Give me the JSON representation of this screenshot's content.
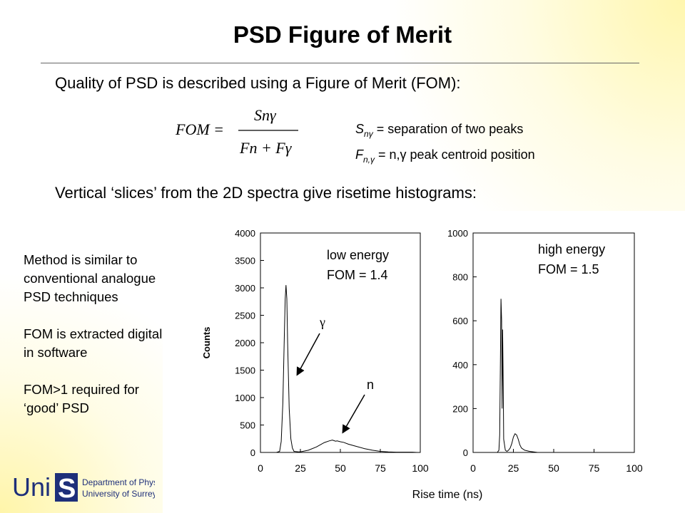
{
  "slide": {
    "title": "PSD Figure of Merit",
    "intro": "Quality of PSD is described using a Figure of Merit (FOM):",
    "slices": "Vertical ‘slices’ from the 2D spectra give risetime histograms:"
  },
  "formula": {
    "lhs": "FOM =",
    "num": "Snγ",
    "den": "Fn + Fγ"
  },
  "definitions": [
    {
      "sym": "S",
      "sub": "nγ",
      "text": " = separation of two peaks"
    },
    {
      "sym": "F",
      "sub": "n,γ",
      "text": " = n,γ peak centroid position"
    }
  ],
  "side_notes": [
    "Method is similar to conventional analogue PSD techniques",
    "FOM is extracted digitally in software",
    "FOM>1 required for ‘good’ PSD"
  ],
  "logo": {
    "mark_a": "Uni",
    "mark_b": "S",
    "line1": "Department of Physics",
    "line2": "University of Surrey"
  },
  "chart_data": [
    {
      "type": "line",
      "title": "",
      "xlabel": "Rise time (ns)",
      "ylabel": "Counts",
      "xlim": [
        0,
        100
      ],
      "ylim": [
        0,
        4000
      ],
      "xticks": [
        0,
        25,
        50,
        75,
        100
      ],
      "yticks": [
        0,
        500,
        1000,
        1500,
        2000,
        2500,
        3000,
        3500,
        4000
      ],
      "annotations": [
        "low energy",
        "FOM = 1.4",
        "γ",
        "n"
      ],
      "series": [
        {
          "x": [
            0,
            5,
            10,
            12,
            13,
            14,
            15,
            15.5,
            16,
            16.5,
            17,
            18,
            19,
            20,
            21,
            22,
            24,
            26,
            30,
            35,
            40,
            43,
            45,
            47,
            48,
            50,
            52,
            55,
            60,
            65,
            70,
            75,
            80,
            85,
            90,
            95,
            98
          ],
          "y": [
            0,
            0,
            0,
            20,
            200,
            900,
            2200,
            2800,
            3050,
            2800,
            2000,
            800,
            250,
            80,
            20,
            15,
            10,
            15,
            40,
            100,
            180,
            210,
            225,
            205,
            210,
            195,
            185,
            150,
            110,
            70,
            40,
            20,
            10,
            5,
            5,
            5,
            0
          ]
        }
      ]
    },
    {
      "type": "line",
      "title": "",
      "xlabel": "Rise time (ns)",
      "ylabel": "",
      "xlim": [
        0,
        100
      ],
      "ylim": [
        0,
        1000
      ],
      "xticks": [
        0,
        25,
        50,
        75,
        100
      ],
      "yticks": [
        0,
        200,
        400,
        600,
        800,
        1000
      ],
      "annotations": [
        "high energy",
        "FOM = 1.5"
      ],
      "series": [
        {
          "x": [
            0,
            10,
            15,
            16,
            16.5,
            17,
            17.3,
            17.7,
            18,
            18.3,
            18.7,
            19,
            20,
            21,
            22,
            23,
            24,
            25,
            26,
            27,
            28,
            29,
            30,
            32,
            35,
            38,
            40,
            45,
            100
          ],
          "y": [
            0,
            0,
            0,
            10,
            80,
            450,
            700,
            600,
            200,
            560,
            300,
            60,
            10,
            5,
            10,
            20,
            40,
            70,
            85,
            80,
            60,
            35,
            20,
            10,
            5,
            2,
            0,
            0,
            0
          ]
        }
      ]
    }
  ]
}
